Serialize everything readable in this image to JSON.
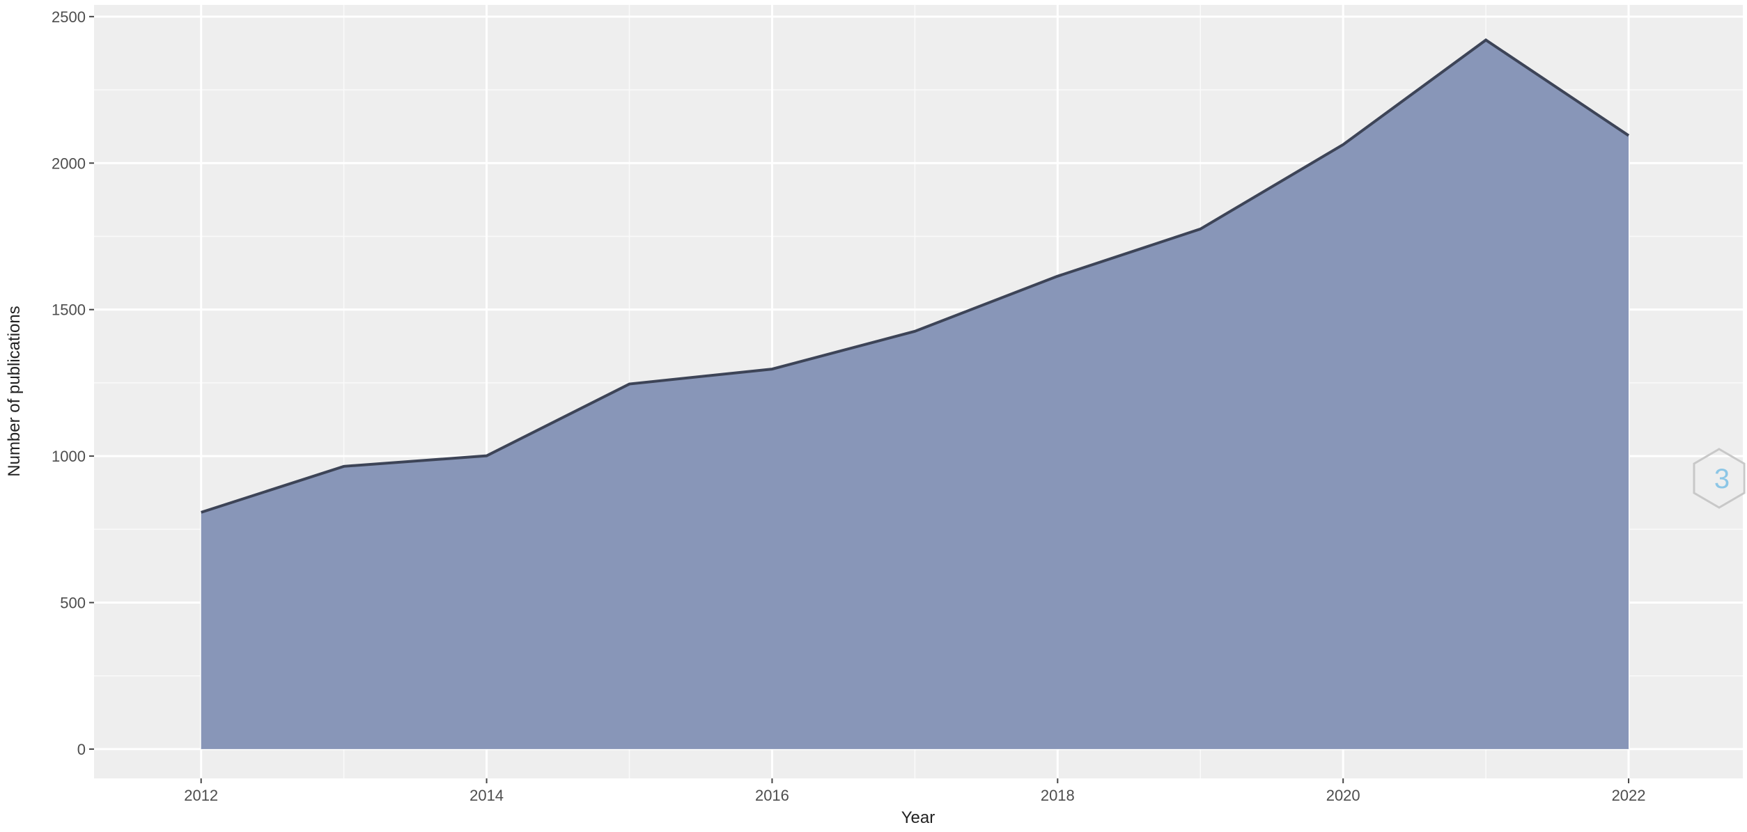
{
  "chart_data": {
    "type": "area",
    "title": "",
    "xlabel": "Year",
    "ylabel": "Number of publications",
    "x": [
      2012,
      2013,
      2014,
      2015,
      2016,
      2017,
      2018,
      2019,
      2020,
      2021,
      2022
    ],
    "values": [
      808,
      965,
      1001,
      1246,
      1297,
      1426,
      1614,
      1775,
      2063,
      2420,
      2094
    ],
    "x_ticks": [
      2012,
      2014,
      2016,
      2018,
      2020,
      2022
    ],
    "y_ticks": [
      0,
      500,
      1000,
      1500,
      2000,
      2500
    ],
    "xlim": [
      2011.25,
      2022.8
    ],
    "ylim": [
      -100,
      2540
    ],
    "grid": true,
    "colors": {
      "fill": "#8896b8",
      "line": "#3d4457",
      "panel": "#eeeeee",
      "grid": "#ffffff"
    },
    "watermark_icon": "hexagon-logo-icon"
  }
}
